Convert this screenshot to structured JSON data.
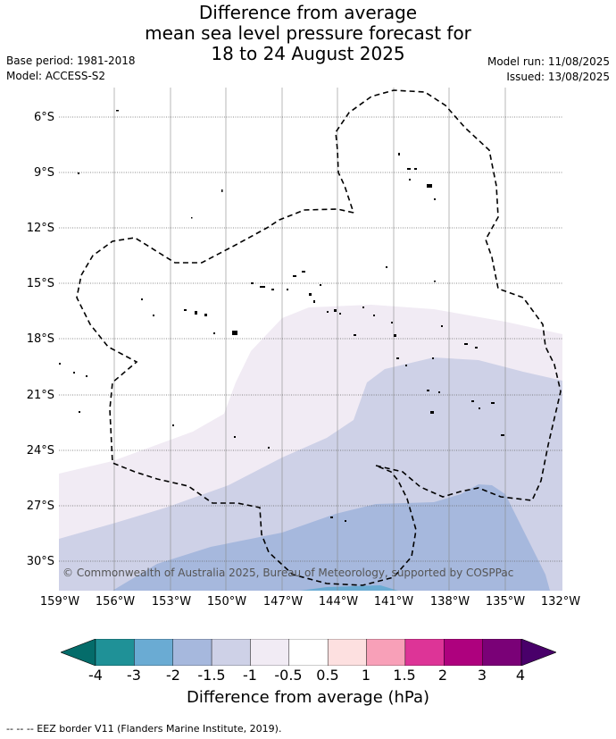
{
  "header": {
    "title_lines": [
      "Difference from average",
      "mean sea level pressure forecast for",
      "18 to 24 August 2025"
    ],
    "base_period": "Base period: 1981-2018",
    "model": "Model: ACCESS-S2",
    "model_run": "Model run: 11/08/2025",
    "issued": "Issued: 13/08/2025"
  },
  "map": {
    "lat_labels": [
      "6°S",
      "9°S",
      "12°S",
      "15°S",
      "18°S",
      "21°S",
      "24°S",
      "27°S",
      "30°S"
    ],
    "lon_labels": [
      "159°W",
      "156°W",
      "153°W",
      "150°W",
      "147°W",
      "144°W",
      "141°W",
      "138°W",
      "135°W",
      "132°W"
    ],
    "copyright": "© Commonwealth of Australia 2025, Bureau of Meteorology, supported by COSPPac"
  },
  "colorbar": {
    "title": "Difference from average (hPa)",
    "tick_labels": [
      "-4",
      "-3",
      "-2",
      "-1.5",
      "-1",
      "-0.5",
      "0.5",
      "1",
      "1.5",
      "2",
      "3",
      "4"
    ],
    "colors": [
      "#046c6a",
      "#1f9197",
      "#6aabd3",
      "#a6b8dd",
      "#ced1e7",
      "#f1ebf4",
      "#ffffff",
      "#fde0e0",
      "#f8a0b8",
      "#dd3497",
      "#ae017e",
      "#7a0177",
      "#49006a"
    ]
  },
  "footer": {
    "legend_note": "-- -- -- EEZ border V11 (Flanders Marine Institute, 2019)."
  }
}
